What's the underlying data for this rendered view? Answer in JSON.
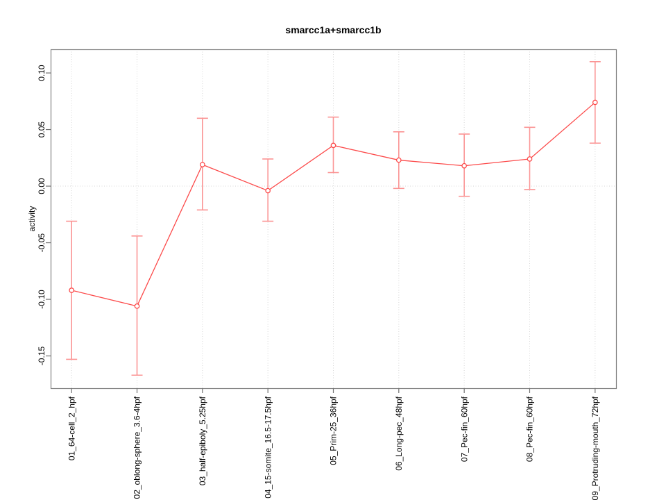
{
  "chart_data": {
    "type": "line",
    "title": "smarcc1a+smarcc1b",
    "xlabel": "",
    "ylabel": "activity",
    "categories": [
      "01_64-cell_2_hpf",
      "02_oblong-sphere_3.6-4hpf",
      "03_half-epiboly_5.25hpf",
      "04_15-somite_16.5-17.5hpf",
      "05_Prim-25_36hpf",
      "06_Long-pec_48hpf",
      "07_Pec-fin_60hpf",
      "08_Pec-fin_60hpf",
      "09_Protruding-mouth_72hpf"
    ],
    "series": [
      {
        "name": "activity",
        "values": [
          -0.092,
          -0.106,
          0.019,
          -0.004,
          0.036,
          0.023,
          0.018,
          0.024,
          0.074
        ],
        "error_high": [
          -0.031,
          -0.044,
          0.06,
          0.024,
          0.061,
          0.048,
          0.046,
          0.052,
          0.11
        ],
        "error_low": [
          -0.153,
          -0.167,
          -0.021,
          -0.031,
          0.012,
          -0.002,
          -0.009,
          -0.003,
          0.038
        ]
      }
    ],
    "yticks": {
      "values": [
        -0.15,
        -0.1,
        -0.05,
        0.0,
        0.05,
        0.1
      ],
      "labels": [
        "-0.15",
        "-0.10",
        "-0.05",
        "0.00",
        "0.05",
        "0.10"
      ]
    },
    "ylim": [
      -0.1785,
      0.1209
    ],
    "grid": {
      "vertical_dotted_at_each_category": true,
      "horizontal_dotted_at_zero": true
    },
    "legend_position": "none",
    "marker": "open-circle",
    "colors": {
      "line": "#fc4a4a",
      "marker": "#fc4a4a",
      "errorbar": "#fb9494",
      "grid": "#d6d6d6",
      "frame": "#808080",
      "tick": "#707070",
      "text": "#000000",
      "background": "#ffffff"
    }
  }
}
